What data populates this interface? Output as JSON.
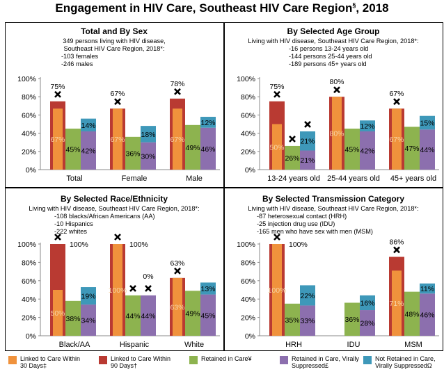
{
  "title": "Engagement in HIV Care, Southeast HIV Care Region",
  "title_sup": "§",
  "title_year": ", 2018",
  "colors": {
    "linked30": "#F0923C",
    "linked90": "#B93A32",
    "retained": "#8DB34F",
    "suppressed": "#8C6FAE",
    "notRetained": "#3E98B9",
    "light": "#F6D5A8"
  },
  "legend": [
    {
      "key": "linked30",
      "label": "Linked to Care Within\n30 Days‡"
    },
    {
      "key": "linked90",
      "label": "Linked to Care Within\n90 Days†"
    },
    {
      "key": "retained",
      "label": "Retained in Care¥"
    },
    {
      "key": "suppressed",
      "label": "Retained in Care, Virally\nSuppressed£"
    },
    {
      "key": "notRetained",
      "label": "Not Retained in Care,\nVirally SuppressedΩ"
    }
  ],
  "y_ticks": [
    "0%",
    "20%",
    "40%",
    "60%",
    "80%",
    "100%"
  ],
  "chart_data": [
    {
      "type": "bar",
      "title": "Total and By Sex",
      "subtitle": [
        "349 persons living with HIV disease,",
        "Southeast HIV Care Region, 2018*:",
        "-103 females",
        "-246 males"
      ],
      "categories": [
        "Total",
        "Female",
        "Male"
      ],
      "ylim": [
        0,
        100
      ],
      "series": [
        {
          "name": "Linked to Care Within 90 Days†",
          "values": [
            75,
            67,
            78
          ]
        },
        {
          "name": "Linked to Care Within 30 Days‡",
          "values": [
            67,
            67,
            67
          ]
        },
        {
          "name": "Retained in Care¥",
          "values": [
            45,
            36,
            49
          ]
        },
        {
          "name": "Retained in Care, Virally Suppressed£",
          "values": [
            42,
            30,
            46
          ]
        },
        {
          "name": "Not Retained in Care, Virally SuppressedΩ",
          "values": [
            14,
            18,
            12
          ]
        }
      ]
    },
    {
      "type": "bar",
      "title": "By Selected Age Group",
      "subtitle": [
        "Living with HIV disease, Southeast HIV Care Region, 2018*:",
        "-16 persons 13-24 years old",
        "-144 persons 25-44 years old",
        "-189 persons 45+ years old"
      ],
      "categories": [
        "13-24 years old",
        "25-44 years old",
        "45+ years old"
      ],
      "ylim": [
        0,
        100
      ],
      "series": [
        {
          "name": "Linked to Care Within 90 Days†",
          "values": [
            75,
            80,
            67
          ]
        },
        {
          "name": "Linked to Care Within 30 Days‡",
          "values": [
            50,
            80,
            67
          ]
        },
        {
          "name": "Retained in Care¥",
          "values": [
            26,
            45,
            47
          ]
        },
        {
          "name": "Retained in Care, Virally Suppressed£",
          "values": [
            21,
            42,
            44
          ]
        },
        {
          "name": "Not Retained in Care, Virally SuppressedΩ",
          "values": [
            21,
            12,
            15
          ]
        }
      ]
    },
    {
      "type": "bar",
      "title": "By Selected Race/Ethnicity",
      "subtitle": [
        "Living with HIV disease, Southeast HIV Care Region, 2018*:",
        "-108 blacks/African Americans (AA)",
        "-10 Hispanics",
        "-222 whites"
      ],
      "categories": [
        "Black/AA",
        "Hispanic",
        "White"
      ],
      "ylim": [
        0,
        100
      ],
      "series": [
        {
          "name": "Linked to Care Within 90 Days†",
          "values": [
            100,
            100,
            63
          ]
        },
        {
          "name": "Linked to Care Within 30 Days‡",
          "values": [
            50,
            100,
            63
          ]
        },
        {
          "name": "Retained in Care¥",
          "values": [
            38,
            44,
            49
          ]
        },
        {
          "name": "Retained in Care, Virally Suppressed£",
          "values": [
            34,
            44,
            45
          ]
        },
        {
          "name": "Not Retained in Care, Virally SuppressedΩ",
          "values": [
            19,
            0,
            13
          ]
        }
      ]
    },
    {
      "type": "bar",
      "title": "By Selected Transmission Category",
      "subtitle": [
        "Living with HIV disease, Southeast HIV Care Region, 2018*:",
        "-87 heterosexual contact (HRH)",
        "-25 injection drug use (IDU)",
        "-165 men who have sex with men (MSM)"
      ],
      "categories": [
        "HRH",
        "IDU",
        "MSM"
      ],
      "ylim": [
        0,
        100
      ],
      "series": [
        {
          "name": "Linked to Care Within 90 Days†",
          "values": [
            100,
            null,
            86
          ]
        },
        {
          "name": "Linked to Care Within 30 Days‡",
          "values": [
            100,
            null,
            71
          ]
        },
        {
          "name": "Retained in Care¥",
          "values": [
            35,
            36,
            48
          ]
        },
        {
          "name": "Retained in Care, Virally Suppressed£",
          "values": [
            33,
            28,
            46
          ]
        },
        {
          "name": "Not Retained in Care, Virally SuppressedΩ",
          "values": [
            22,
            16,
            11
          ]
        }
      ]
    }
  ]
}
